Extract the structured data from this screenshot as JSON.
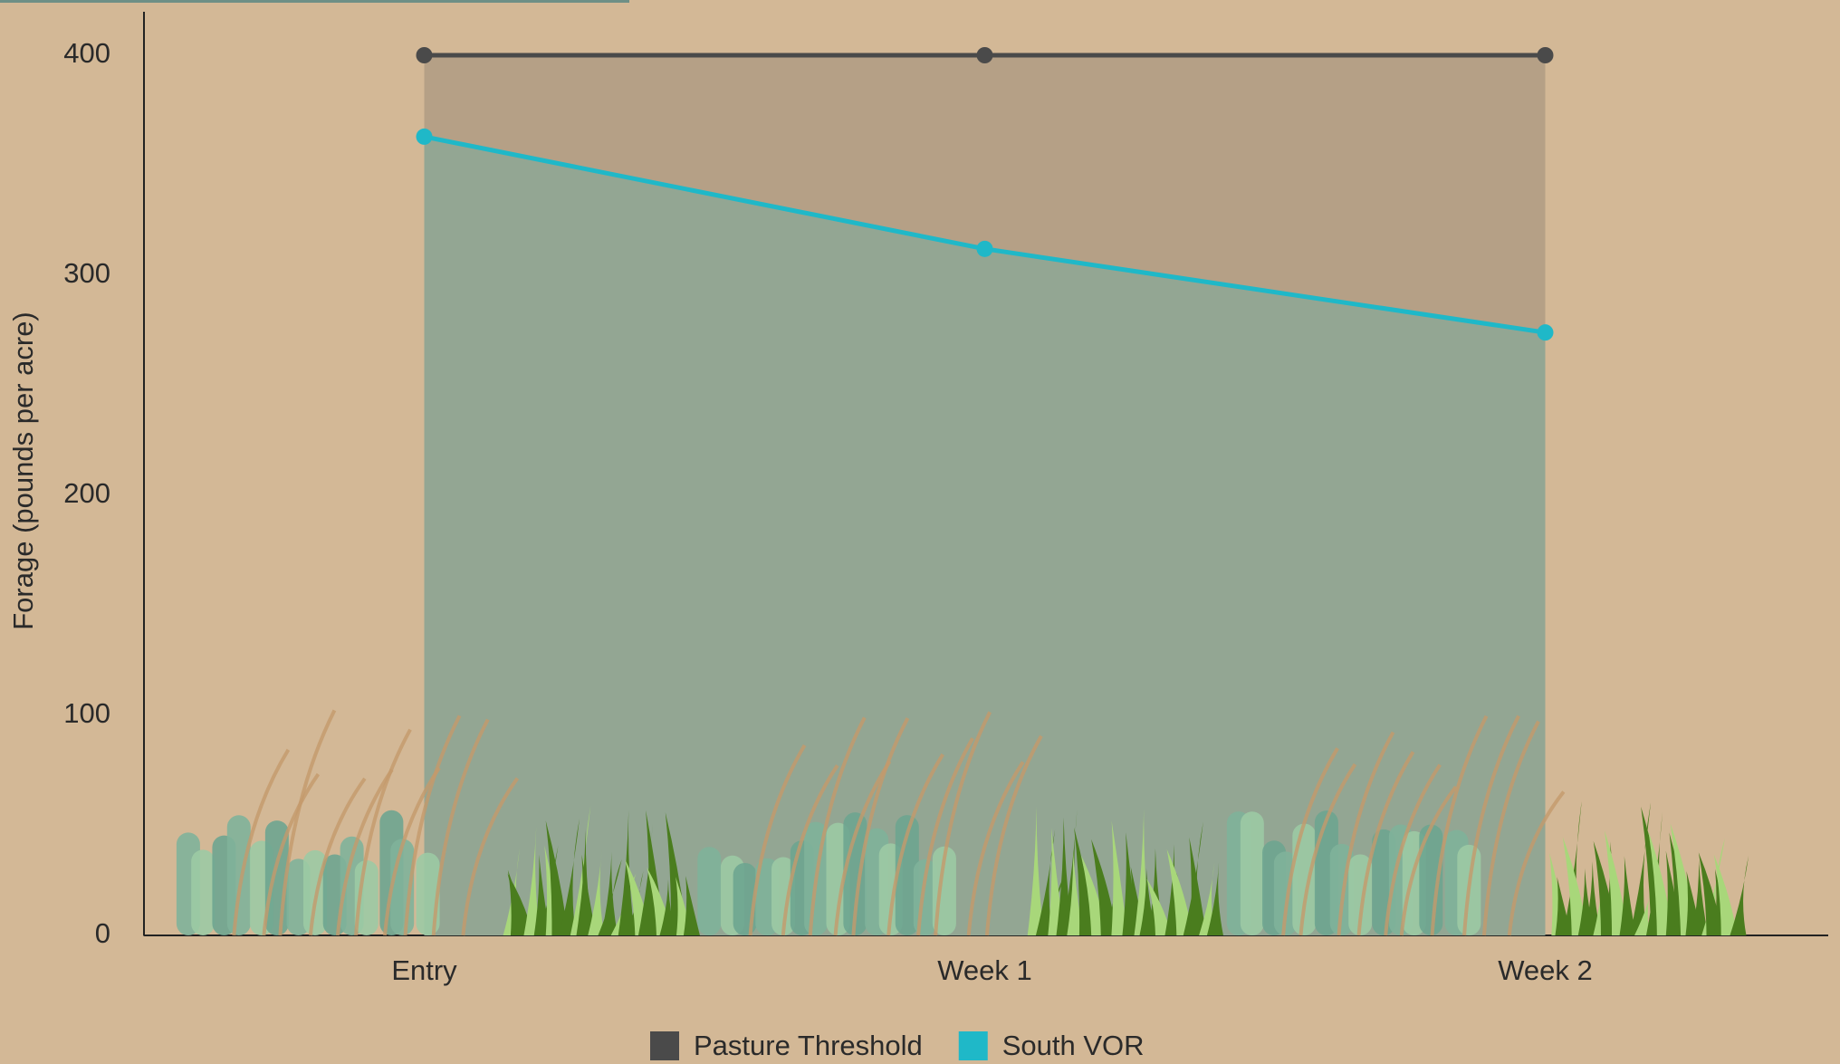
{
  "chart_data": {
    "type": "line",
    "y_label": "Forage (pounds per acre)",
    "categories": [
      "Entry",
      "Week 1",
      "Week 2"
    ],
    "series": [
      {
        "name": "Pasture Threshold",
        "color": "#4a4a4a",
        "fill": "#b5a086",
        "values": [
          400,
          400,
          400
        ]
      },
      {
        "name": "South VOR",
        "color": "#1fb8c8",
        "fill": "#93a693",
        "values": [
          363,
          312,
          274
        ]
      }
    ],
    "ylim": [
      0,
      400
    ],
    "yticks": [
      0,
      100,
      200,
      300,
      400
    ],
    "legend": "bottom"
  }
}
